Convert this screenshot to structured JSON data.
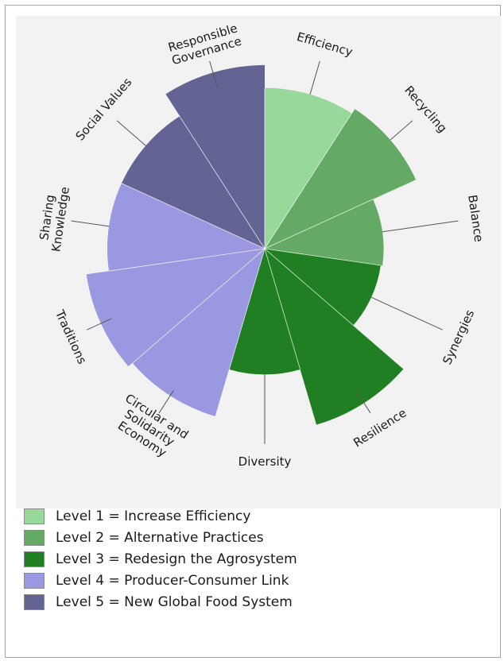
{
  "chart_data": {
    "type": "polar-area",
    "title": "",
    "categories": [
      "Efficiency",
      "Recycling",
      "Balance",
      "Synergies",
      "Resilience",
      "Diversity",
      "Circular and Solidarity Economy",
      "Traditions",
      "Sharing Knowledge",
      "Social Values",
      "Responsible Governance"
    ],
    "label_lines": [
      [
        "Efficiency"
      ],
      [
        "Recycling"
      ],
      [
        "Balance"
      ],
      [
        "Synergies"
      ],
      [
        "Resilience"
      ],
      [
        "Diversity"
      ],
      [
        "Circular and",
        "Solidarity",
        "Economy"
      ],
      [
        "Traditions"
      ],
      [
        "Sharing",
        "Knowledge"
      ],
      [
        "Social Values"
      ],
      [
        "Responsible",
        "Governance"
      ]
    ],
    "values": [
      0.92,
      0.95,
      0.68,
      0.67,
      1.05,
      0.72,
      1.0,
      1.03,
      0.9,
      0.9,
      1.05
    ],
    "levels": [
      1,
      2,
      2,
      3,
      3,
      3,
      4,
      4,
      4,
      5,
      5
    ],
    "level_colors": {
      "1": "#98d89a",
      "2": "#64aa64",
      "3": "#1f7f22",
      "4": "#9a98e0",
      "5": "#646494"
    },
    "legend": [
      {
        "label": "Level 1 = Increase Efficiency",
        "color": "#98d89a"
      },
      {
        "label": "Level 2 = Alternative Practices",
        "color": "#64aa64"
      },
      {
        "label": "Level 3 = Redesign the Agrosystem",
        "color": "#1f7f22"
      },
      {
        "label": "Level 4 = Producer-Consumer Link",
        "color": "#9a98e0"
      },
      {
        "label": "Level 5 = New Global Food System",
        "color": "#646494"
      }
    ],
    "legend_placement": "bottom-left",
    "grid": false
  }
}
